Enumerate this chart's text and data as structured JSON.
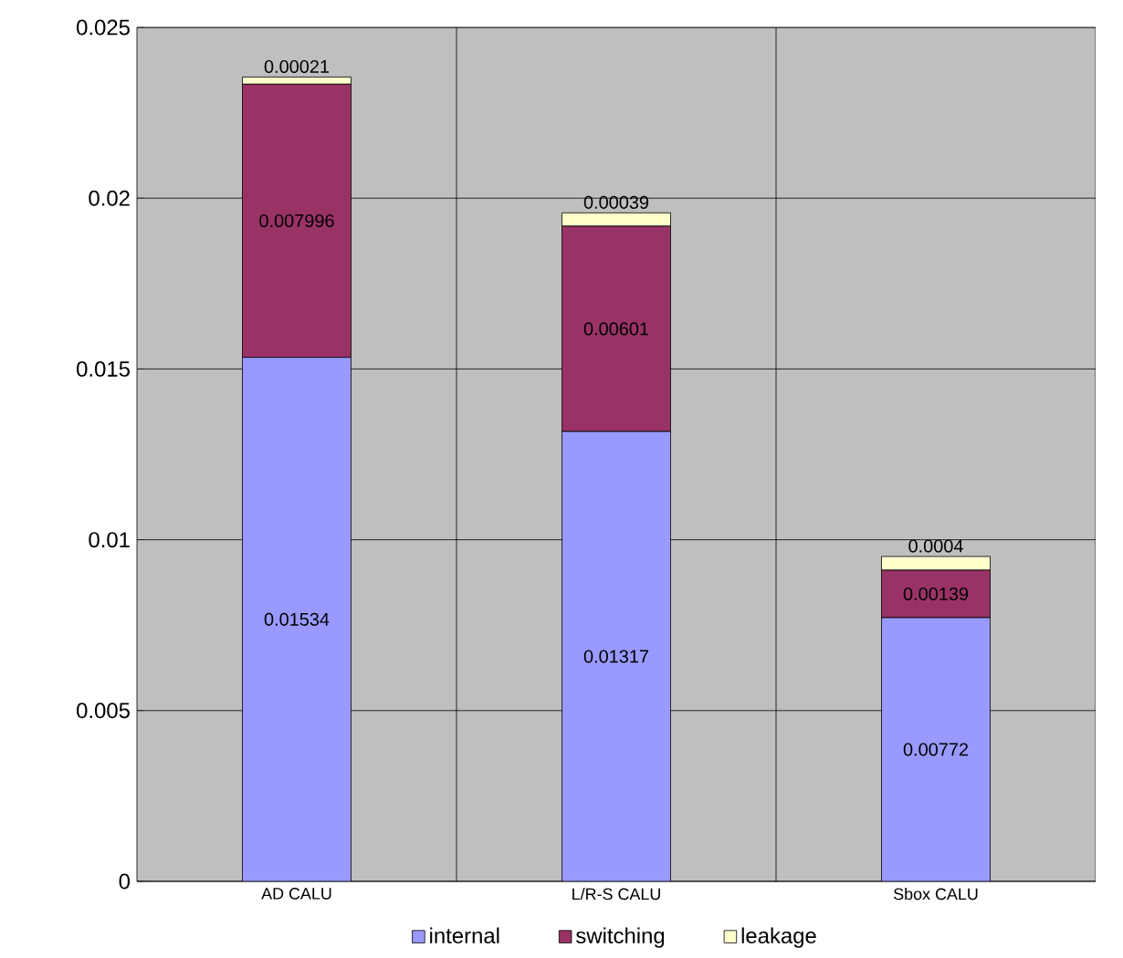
{
  "chart_data": {
    "type": "bar",
    "stacked": true,
    "categories": [
      "AD CALU",
      "L/R-S CALU",
      "Sbox CALU"
    ],
    "series": [
      {
        "name": "internal",
        "color": "#9999ff",
        "values": [
          0.01534,
          0.01317,
          0.00772
        ]
      },
      {
        "name": "switching",
        "color": "#993366",
        "values": [
          0.007996,
          0.00601,
          0.00139
        ]
      },
      {
        "name": "leakage",
        "color": "#ffffcc",
        "values": [
          0.00021,
          0.00039,
          0.0004
        ]
      }
    ],
    "ylim": [
      0,
      0.025
    ],
    "yticks": [
      0,
      0.005,
      0.01,
      0.015,
      0.02,
      0.025
    ],
    "grid": true,
    "legend": "bottom",
    "data_labels": true
  }
}
